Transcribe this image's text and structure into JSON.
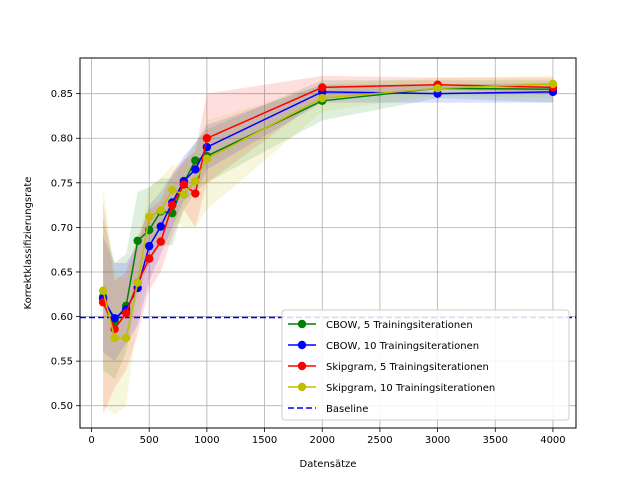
{
  "chart_data": {
    "type": "line",
    "xlabel": "Datensätze",
    "ylabel": "Korrektklassifizierungsrate",
    "xlim": [
      -100,
      4200
    ],
    "ylim": [
      0.475,
      0.89
    ],
    "xticks": [
      0,
      500,
      1000,
      1500,
      2000,
      2500,
      3000,
      3500,
      4000
    ],
    "xtick_labels": [
      "0",
      "500",
      "1000",
      "1500",
      "2000",
      "2500",
      "3000",
      "3500",
      "4000"
    ],
    "yticks": [
      0.5,
      0.55,
      0.6,
      0.65,
      0.7,
      0.75,
      0.8,
      0.85
    ],
    "ytick_labels": [
      "0.50",
      "0.55",
      "0.60",
      "0.65",
      "0.70",
      "0.75",
      "0.80",
      "0.85"
    ],
    "grid": true,
    "legend_position": "lower-right",
    "x": [
      100,
      200,
      300,
      400,
      500,
      600,
      700,
      800,
      900,
      1000,
      2000,
      3000,
      4000
    ],
    "series": [
      {
        "name": "CBOW, 5 Trainingsiterationen",
        "color": "#008000",
        "values": [
          0.622,
          0.595,
          0.612,
          0.685,
          0.697,
          0.718,
          0.716,
          0.75,
          0.775,
          0.78,
          0.842,
          0.856,
          0.855
        ],
        "lower": [
          0.54,
          0.53,
          0.56,
          0.63,
          0.66,
          0.68,
          0.68,
          0.72,
          0.74,
          0.75,
          0.82,
          0.845,
          0.84
        ],
        "upper": [
          0.71,
          0.66,
          0.67,
          0.74,
          0.745,
          0.755,
          0.755,
          0.775,
          0.795,
          0.81,
          0.865,
          0.865,
          0.865
        ]
      },
      {
        "name": "CBOW, 10 Trainingsiterationen",
        "color": "#0000ff",
        "values": [
          0.62,
          0.598,
          0.608,
          0.632,
          0.679,
          0.701,
          0.728,
          0.752,
          0.765,
          0.79,
          0.852,
          0.85,
          0.852
        ],
        "lower": [
          0.56,
          0.55,
          0.57,
          0.59,
          0.64,
          0.67,
          0.7,
          0.73,
          0.74,
          0.765,
          0.84,
          0.84,
          0.84
        ],
        "upper": [
          0.69,
          0.66,
          0.66,
          0.68,
          0.725,
          0.74,
          0.76,
          0.78,
          0.795,
          0.815,
          0.86,
          0.86,
          0.862
        ]
      },
      {
        "name": "Skipgram, 5 Trainingsiterationen",
        "color": "#ff0000",
        "values": [
          0.616,
          0.586,
          0.604,
          0.638,
          0.665,
          0.684,
          0.725,
          0.748,
          0.738,
          0.8,
          0.857,
          0.86,
          0.857
        ],
        "lower": [
          0.49,
          0.52,
          0.54,
          0.58,
          0.63,
          0.65,
          0.69,
          0.72,
          0.7,
          0.75,
          0.845,
          0.855,
          0.85
        ],
        "upper": [
          0.73,
          0.64,
          0.65,
          0.69,
          0.72,
          0.73,
          0.76,
          0.775,
          0.785,
          0.85,
          0.87,
          0.868,
          0.868
        ]
      },
      {
        "name": "Skipgram, 10 Trainingsiterationen",
        "color": "#bfbf00",
        "values": [
          0.629,
          0.576,
          0.576,
          0.638,
          0.712,
          0.719,
          0.742,
          0.737,
          0.752,
          0.777,
          0.845,
          0.856,
          0.861
        ],
        "lower": [
          0.5,
          0.49,
          0.5,
          0.6,
          0.675,
          0.69,
          0.71,
          0.7,
          0.7,
          0.72,
          0.83,
          0.848,
          0.845
        ],
        "upper": [
          0.745,
          0.65,
          0.64,
          0.68,
          0.745,
          0.755,
          0.77,
          0.77,
          0.79,
          0.82,
          0.86,
          0.868,
          0.87
        ]
      }
    ],
    "baseline": {
      "name": "Baseline",
      "color": "#0000ff",
      "value": 0.599
    }
  }
}
